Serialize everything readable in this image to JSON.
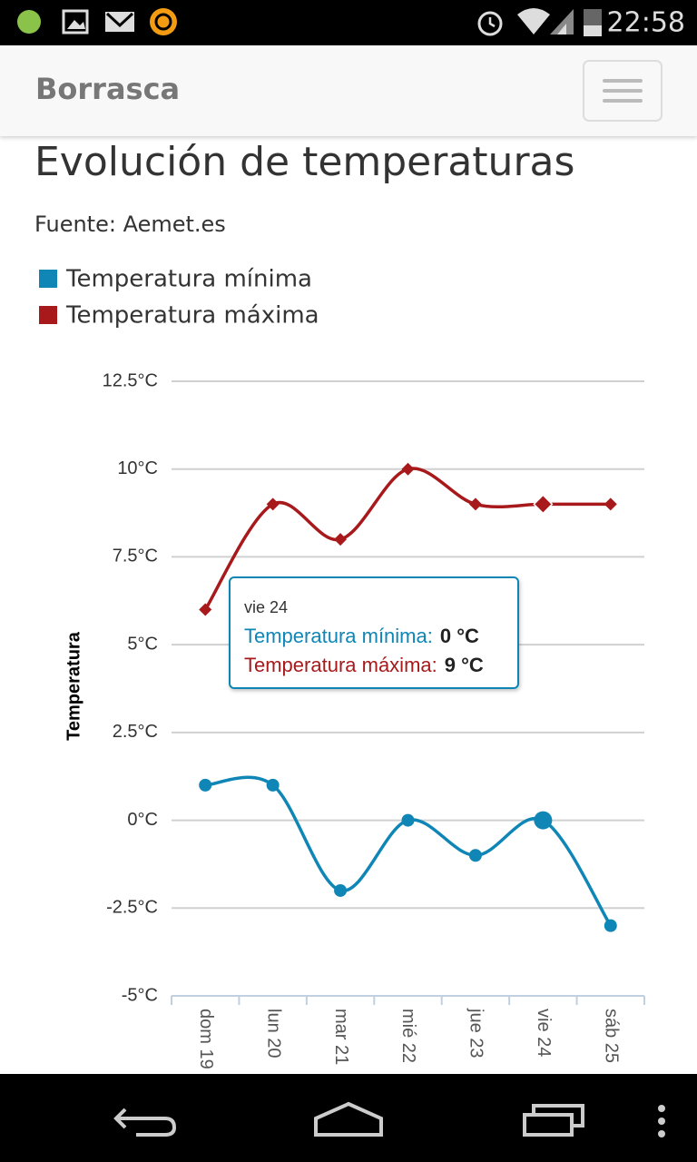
{
  "status_bar": {
    "time": "22:58"
  },
  "app_bar": {
    "title": "Borrasca"
  },
  "chart_data": {
    "type": "line",
    "title": "Evolución de temperaturas",
    "subtitle": "Fuente: Aemet.es",
    "y_label": "Temperatura",
    "categories": [
      "dom 19",
      "lun 20",
      "mar 21",
      "mié 22",
      "jue 23",
      "vie 24",
      "sáb 25"
    ],
    "series": [
      {
        "name": "Temperatura mínima",
        "color": "#0f86b6",
        "marker": "circle",
        "values": [
          1,
          1,
          -2,
          0,
          -1,
          0,
          -3
        ]
      },
      {
        "name": "Temperatura máxima",
        "color": "#a8191c",
        "marker": "diamond",
        "values": [
          6,
          9,
          8,
          10,
          9,
          9,
          9
        ]
      }
    ],
    "ylim": [
      -5,
      12.5
    ],
    "yticks": [
      {
        "value": -5,
        "label": "-5°C"
      },
      {
        "value": -2.5,
        "label": "-2.5°C"
      },
      {
        "value": 0,
        "label": "0°C"
      },
      {
        "value": 2.5,
        "label": "2.5°C"
      },
      {
        "value": 5,
        "label": "5°C"
      },
      {
        "value": 7.5,
        "label": "7.5°C"
      },
      {
        "value": 10,
        "label": "10°C"
      },
      {
        "value": 12.5,
        "label": "12.5°C"
      }
    ],
    "grid": true,
    "tooltip": {
      "title": "vie 24",
      "items": [
        {
          "label": "Temperatura mínima:",
          "value": 0,
          "value_label": "0 °C"
        },
        {
          "label": "Temperatura máxima:",
          "value": 9,
          "value_label": "9 °C"
        }
      ]
    }
  }
}
